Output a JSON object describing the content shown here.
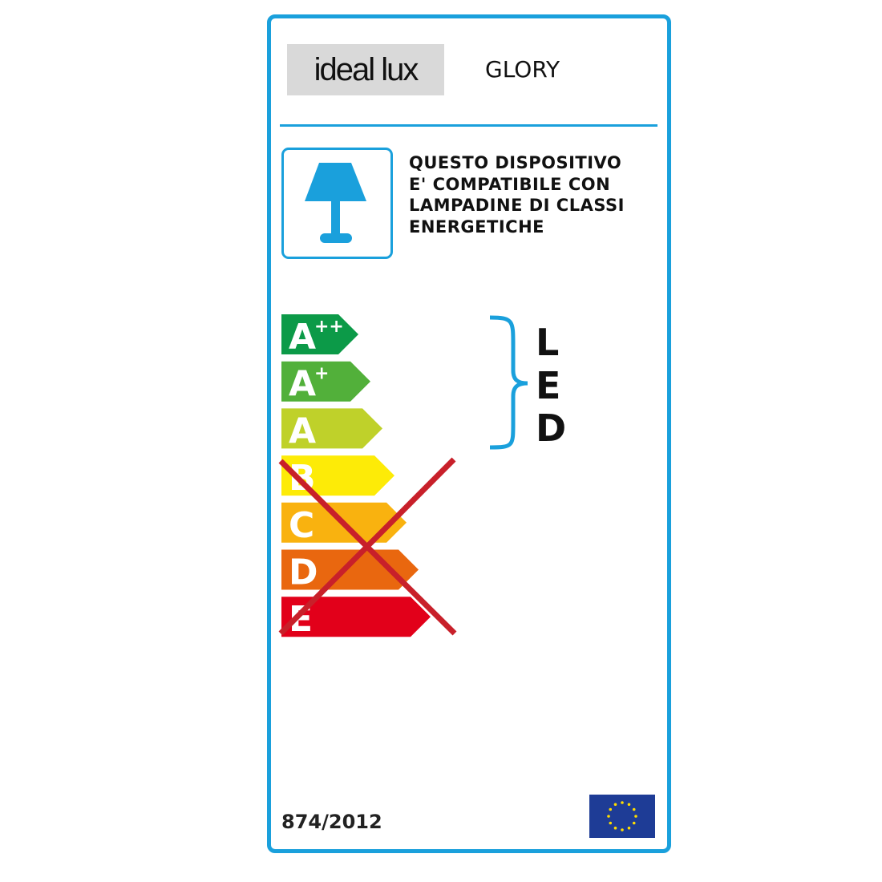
{
  "brand": {
    "logo_text": "ideal lux"
  },
  "model": "GLORY",
  "compatibility": {
    "icon": "table-lamp-icon",
    "lines": [
      "QUESTO DISPOSITIVO",
      "E' COMPATIBILE CON",
      "LAMPADINE DI CLASSI",
      "ENERGETICHE"
    ]
  },
  "energy_classes": [
    {
      "letter": "A",
      "sup": "++",
      "color": "#0c9a48",
      "crossed": false
    },
    {
      "letter": "A",
      "sup": "+",
      "color": "#52b03a",
      "crossed": false
    },
    {
      "letter": "A",
      "sup": "",
      "color": "#bfd12a",
      "crossed": false
    },
    {
      "letter": "B",
      "sup": "",
      "color": "#fdeb07",
      "crossed": true
    },
    {
      "letter": "C",
      "sup": "",
      "color": "#f9b20f",
      "crossed": true
    },
    {
      "letter": "D",
      "sup": "",
      "color": "#e9670f",
      "crossed": true
    },
    {
      "letter": "E",
      "sup": "",
      "color": "#e2001a",
      "crossed": true
    }
  ],
  "compatible_type": [
    "L",
    "E",
    "D"
  ],
  "regulation": "874/2012",
  "colors": {
    "accent": "#1aa0dc",
    "cross": "#c8202a",
    "eu_flag": "#1e3c96",
    "eu_stars": "#ffdd00"
  }
}
